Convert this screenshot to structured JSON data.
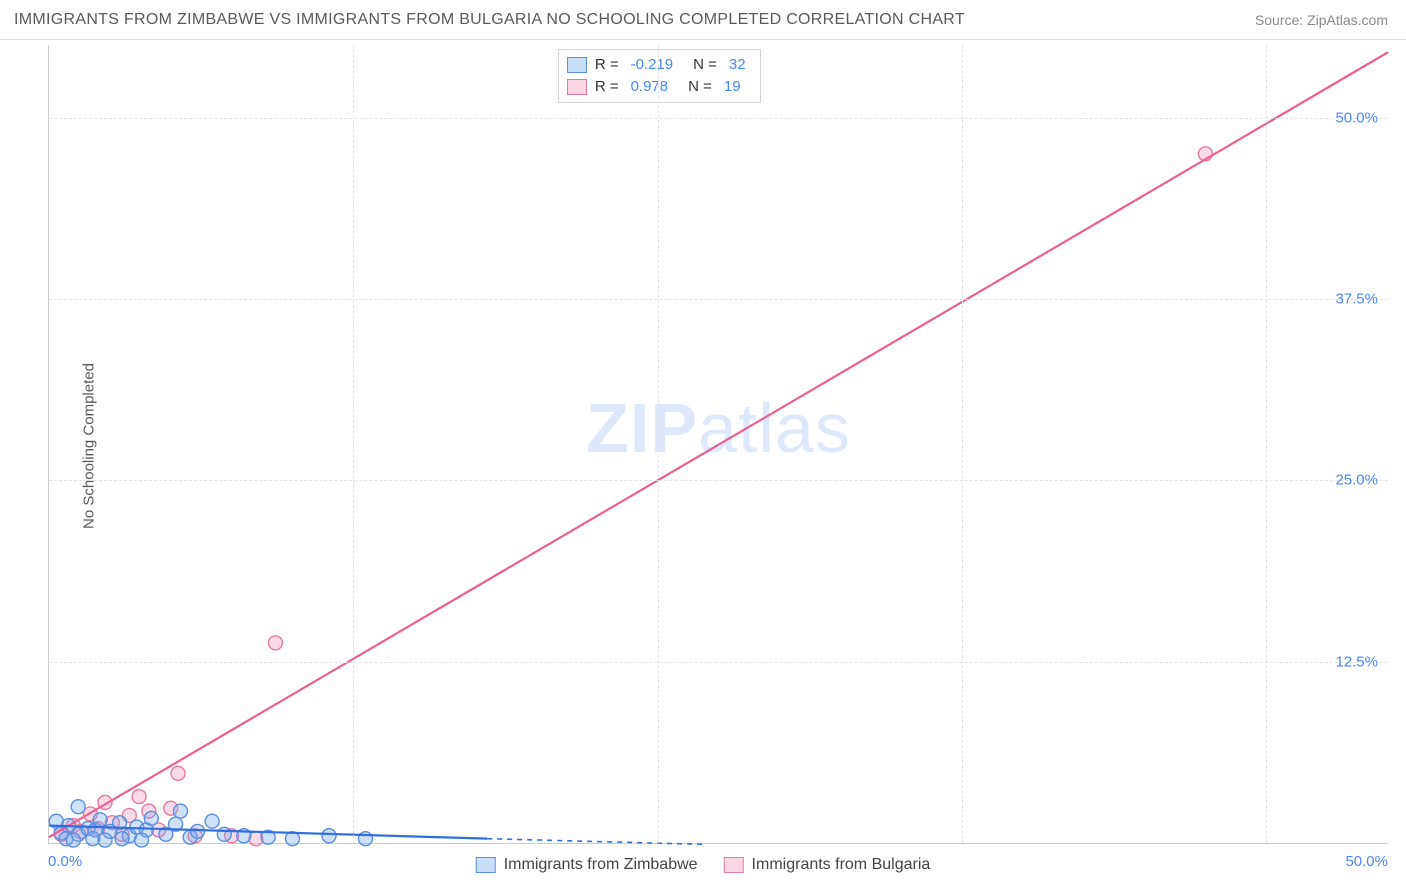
{
  "header": {
    "title": "IMMIGRANTS FROM ZIMBABWE VS IMMIGRANTS FROM BULGARIA NO SCHOOLING COMPLETED CORRELATION CHART",
    "source": "Source: ZipAtlas.com"
  },
  "axes": {
    "ylabel": "No Schooling Completed",
    "xmin": 0,
    "xmax": 55,
    "ymin": 0,
    "ymax": 55,
    "yticks": [
      12.5,
      25.0,
      37.5,
      50.0
    ],
    "ytick_labels": [
      "12.5%",
      "25.0%",
      "37.5%",
      "50.0%"
    ],
    "x_left_label": "0.0%",
    "x_right_label": "50.0%"
  },
  "watermark": {
    "prefix": "ZIP",
    "suffix": "atlas"
  },
  "colors": {
    "series_a_fill": "rgba(118,169,238,0.35)",
    "series_a_stroke": "#5b8fe0",
    "series_b_fill": "rgba(244,151,185,0.35)",
    "series_b_stroke": "#e77aa3",
    "line_a": "#2f6fe0",
    "line_b": "#ec5f93",
    "tick_text": "#4a86f7"
  },
  "stats_box": {
    "rows": [
      {
        "sw": "blue",
        "r_label": "R =",
        "r": "-0.219",
        "n_label": "N =",
        "n": "32"
      },
      {
        "sw": "pink",
        "r_label": "R =",
        "r": "0.978",
        "n_label": "N =",
        "n": "19"
      }
    ]
  },
  "bottom_legend": {
    "items": [
      {
        "sw": "blue",
        "label": "Immigrants from Zimbabwe"
      },
      {
        "sw": "pink",
        "label": "Immigrants from Bulgaria"
      }
    ]
  },
  "series_a": {
    "marker_radius": 7,
    "points": [
      [
        0.3,
        1.5
      ],
      [
        0.5,
        0.7
      ],
      [
        0.8,
        1.2
      ],
      [
        1.2,
        0.6
      ],
      [
        1.2,
        2.5
      ],
      [
        1.6,
        1.0
      ],
      [
        1.9,
        0.9
      ],
      [
        2.1,
        1.6
      ],
      [
        2.5,
        0.8
      ],
      [
        2.9,
        1.4
      ],
      [
        3.3,
        0.5
      ],
      [
        3.6,
        1.1
      ],
      [
        4.0,
        0.9
      ],
      [
        4.2,
        1.7
      ],
      [
        4.8,
        0.6
      ],
      [
        5.2,
        1.3
      ],
      [
        5.8,
        0.4
      ],
      [
        5.4,
        2.2
      ],
      [
        6.1,
        0.8
      ],
      [
        6.7,
        1.5
      ],
      [
        7.2,
        0.6
      ],
      [
        8.0,
        0.5
      ],
      [
        9.0,
        0.4
      ],
      [
        10.0,
        0.3
      ],
      [
        11.5,
        0.5
      ],
      [
        13.0,
        0.3
      ],
      [
        0.7,
        0.3
      ],
      [
        1.0,
        0.2
      ],
      [
        1.8,
        0.3
      ],
      [
        2.3,
        0.2
      ],
      [
        3.0,
        0.3
      ],
      [
        3.8,
        0.2
      ]
    ],
    "trend": {
      "x1": 0,
      "y1": 1.2,
      "x2_solid": 18,
      "y2_solid": 0.3,
      "x2_dash": 27,
      "y2_dash": -0.1
    }
  },
  "series_b": {
    "marker_radius": 7,
    "points": [
      [
        0.5,
        0.6
      ],
      [
        1.0,
        1.2
      ],
      [
        1.3,
        0.8
      ],
      [
        1.7,
        2.0
      ],
      [
        2.0,
        1.0
      ],
      [
        2.3,
        2.8
      ],
      [
        2.6,
        1.4
      ],
      [
        3.0,
        0.6
      ],
      [
        3.3,
        1.9
      ],
      [
        3.7,
        3.2
      ],
      [
        4.1,
        2.2
      ],
      [
        4.5,
        0.9
      ],
      [
        5.3,
        4.8
      ],
      [
        5.0,
        2.4
      ],
      [
        6.0,
        0.5
      ],
      [
        7.5,
        0.5
      ],
      [
        8.5,
        0.3
      ],
      [
        9.3,
        13.8
      ],
      [
        47.5,
        47.5
      ]
    ],
    "trend": {
      "x1": 0,
      "y1": 0.4,
      "x2": 55,
      "y2": 54.5
    }
  }
}
